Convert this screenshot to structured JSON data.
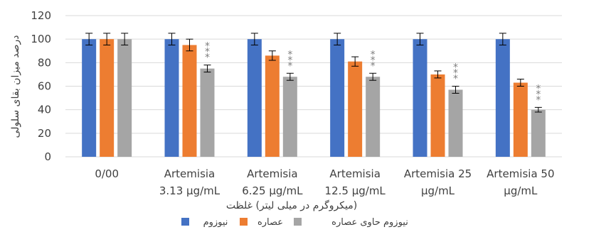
{
  "chart_data": {
    "type": "bar",
    "categories": [
      [
        "0/00",
        ""
      ],
      [
        "Artemisia",
        "3.13 µg/mL"
      ],
      [
        "Artemisia",
        "6.25 µg/mL"
      ],
      [
        "Artemisia",
        "12.5 µg/mL"
      ],
      [
        "Artemisia 25",
        "µg/mL"
      ],
      [
        "Artemisia 50",
        "µg/mL"
      ]
    ],
    "series": [
      {
        "name": "نیوزوم",
        "color": "#4472c4",
        "values": [
          100,
          100,
          100,
          100,
          100,
          100
        ],
        "errors": [
          5,
          5,
          5,
          5,
          5,
          5
        ],
        "stars": [
          0,
          0,
          0,
          0,
          0,
          0
        ]
      },
      {
        "name": "عصاره",
        "color": "#ed7d31",
        "values": [
          100,
          95,
          86,
          81,
          70,
          63
        ],
        "errors": [
          5,
          5,
          4,
          4,
          3,
          3
        ],
        "stars": [
          0,
          0,
          0,
          0,
          0,
          0
        ]
      },
      {
        "name": "نیوزوم حاوی عصاره",
        "color": "#a5a5a5",
        "values": [
          100,
          75,
          68,
          68,
          57,
          40
        ],
        "errors": [
          5,
          3,
          3,
          3,
          3,
          2
        ],
        "stars": [
          0,
          3,
          3,
          3,
          3,
          3
        ]
      }
    ],
    "xlabel": "(میکروگرم در میلی لیتر) غلظت",
    "ylabel": "درصد میزان بقای سلولی",
    "yticks": [
      0,
      20,
      40,
      60,
      80,
      100,
      120
    ],
    "ylim": [
      0,
      120
    ],
    "grid": true,
    "legend_position": "bottom"
  }
}
